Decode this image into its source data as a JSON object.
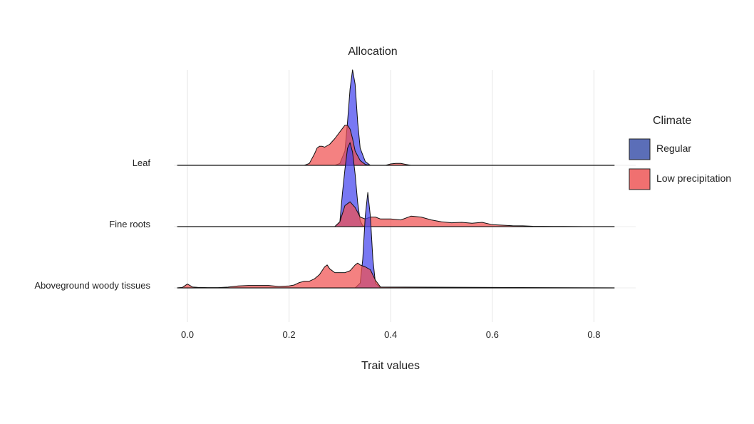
{
  "chart_data": {
    "type": "area",
    "subtype": "ridgeline",
    "title": "Allocation",
    "xlabel": "Trait values",
    "ylabel": "",
    "xlim": [
      -0.02,
      0.84
    ],
    "xticks": [
      "0.0",
      "0.2",
      "0.4",
      "0.6",
      "0.8"
    ],
    "categories": [
      "Leaf",
      "Fine roots",
      "Aboveground woody tissues"
    ],
    "grid": true,
    "legend": {
      "title": "Climate",
      "placement": "right",
      "items": [
        {
          "name": "Regular",
          "color": "#5b6eb8"
        },
        {
          "name": "Low precipitation",
          "color": "#f07070"
        }
      ]
    },
    "series": [
      {
        "name": "Regular",
        "color": "#4444ee",
        "ridges": [
          {
            "category": "Leaf",
            "x": [
              -0.02,
              0.29,
              0.3,
              0.31,
              0.315,
              0.32,
              0.325,
              0.33,
              0.335,
              0.34,
              0.35,
              0.36,
              0.84
            ],
            "y": [
              0,
              0,
              0.02,
              0.15,
              0.45,
              0.8,
              1.0,
              0.85,
              0.45,
              0.18,
              0.04,
              0,
              0
            ]
          },
          {
            "category": "Fine roots",
            "x": [
              -0.02,
              0.29,
              0.3,
              0.305,
              0.31,
              0.315,
              0.32,
              0.325,
              0.33,
              0.335,
              0.34,
              0.345,
              0.35,
              0.84
            ],
            "y": [
              0,
              0,
              0.05,
              0.35,
              0.6,
              0.82,
              0.88,
              0.78,
              0.55,
              0.25,
              0.06,
              0.01,
              0,
              0
            ]
          },
          {
            "category": "Aboveground woody tissues",
            "x": [
              -0.02,
              0.33,
              0.34,
              0.345,
              0.35,
              0.355,
              0.36,
              0.365,
              0.37,
              0.38,
              0.84
            ],
            "y": [
              0,
              0,
              0.05,
              0.3,
              0.75,
              1.0,
              0.75,
              0.3,
              0.05,
              0,
              0
            ]
          }
        ]
      },
      {
        "name": "Low precipitation",
        "color": "#f05050",
        "ridges": [
          {
            "category": "Leaf",
            "x": [
              -0.02,
              0.23,
              0.24,
              0.25,
              0.255,
              0.26,
              0.265,
              0.27,
              0.28,
              0.29,
              0.3,
              0.31,
              0.315,
              0.32,
              0.325,
              0.33,
              0.34,
              0.35,
              0.36,
              0.39,
              0.4,
              0.41,
              0.42,
              0.43,
              0.44,
              0.84
            ],
            "y": [
              0,
              0,
              0.02,
              0.12,
              0.18,
              0.2,
              0.2,
              0.19,
              0.22,
              0.28,
              0.35,
              0.42,
              0.42,
              0.38,
              0.28,
              0.15,
              0.05,
              0.01,
              0,
              0,
              0.015,
              0.02,
              0.02,
              0.01,
              0,
              0
            ]
          },
          {
            "category": "Fine roots",
            "x": [
              -0.02,
              0.29,
              0.3,
              0.31,
              0.32,
              0.33,
              0.34,
              0.35,
              0.36,
              0.37,
              0.38,
              0.4,
              0.42,
              0.44,
              0.46,
              0.48,
              0.5,
              0.52,
              0.54,
              0.56,
              0.58,
              0.6,
              0.62,
              0.64,
              0.66,
              0.68,
              0.7,
              0.72,
              0.74,
              0.76,
              0.78,
              0.84
            ],
            "y": [
              0,
              0,
              0.05,
              0.22,
              0.26,
              0.2,
              0.1,
              0.08,
              0.1,
              0.1,
              0.08,
              0.08,
              0.07,
              0.11,
              0.1,
              0.07,
              0.05,
              0.04,
              0.045,
              0.035,
              0.045,
              0.02,
              0.015,
              0.01,
              0.008,
              0.004,
              0.003,
              0.002,
              0.002,
              0.001,
              0,
              0
            ]
          },
          {
            "category": "Aboveground woody tissues",
            "x": [
              -0.02,
              -0.01,
              0.0,
              0.01,
              0.02,
              0.04,
              0.06,
              0.08,
              0.1,
              0.12,
              0.14,
              0.16,
              0.18,
              0.2,
              0.21,
              0.22,
              0.23,
              0.24,
              0.25,
              0.26,
              0.27,
              0.275,
              0.28,
              0.29,
              0.3,
              0.31,
              0.32,
              0.33,
              0.335,
              0.34,
              0.35,
              0.36,
              0.37,
              0.38,
              0.84
            ],
            "y": [
              0,
              0.005,
              0.04,
              0.01,
              0.005,
              0.003,
              0.003,
              0.008,
              0.02,
              0.025,
              0.025,
              0.025,
              0.015,
              0.02,
              0.03,
              0.055,
              0.07,
              0.07,
              0.095,
              0.14,
              0.22,
              0.24,
              0.2,
              0.16,
              0.16,
              0.16,
              0.18,
              0.24,
              0.26,
              0.24,
              0.22,
              0.19,
              0.08,
              0.01,
              0
            ]
          }
        ]
      }
    ]
  }
}
